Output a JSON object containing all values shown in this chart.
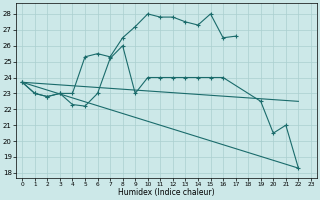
{
  "xlabel": "Humidex (Indice chaleur)",
  "xlim": [
    -0.5,
    23.5
  ],
  "ylim": [
    17.7,
    28.7
  ],
  "yticks": [
    18,
    19,
    20,
    21,
    22,
    23,
    24,
    25,
    26,
    27,
    28
  ],
  "xticks": [
    0,
    1,
    2,
    3,
    4,
    5,
    6,
    7,
    8,
    9,
    10,
    11,
    12,
    13,
    14,
    15,
    16,
    17,
    18,
    19,
    20,
    21,
    22,
    23
  ],
  "background_color": "#cce8e8",
  "grid_color": "#aacfcf",
  "line_color": "#1a6b6b",
  "line1_x": [
    0,
    1,
    2,
    3,
    4,
    5,
    6,
    7,
    8,
    9,
    10,
    11,
    12,
    13,
    14,
    15,
    16,
    17
  ],
  "line1_y": [
    23.7,
    23.0,
    22.8,
    23.0,
    23.0,
    25.3,
    25.5,
    25.3,
    26.5,
    27.2,
    28.0,
    27.8,
    27.8,
    27.5,
    27.3,
    28.0,
    26.5,
    26.6
  ],
  "line2_x": [
    0,
    1,
    2,
    3,
    4,
    5,
    6,
    7,
    8,
    9,
    10,
    11,
    12,
    13,
    14,
    15,
    16,
    19,
    20,
    21,
    22
  ],
  "line2_y": [
    23.7,
    23.0,
    22.8,
    23.0,
    22.3,
    22.2,
    23.0,
    25.2,
    26.0,
    23.0,
    24.0,
    24.0,
    24.0,
    24.0,
    24.0,
    24.0,
    24.0,
    22.5,
    20.5,
    21.0,
    18.3
  ],
  "line3_x": [
    0,
    22
  ],
  "line3_y": [
    23.7,
    22.5
  ],
  "line4_x": [
    0,
    22
  ],
  "line4_y": [
    23.7,
    18.3
  ]
}
